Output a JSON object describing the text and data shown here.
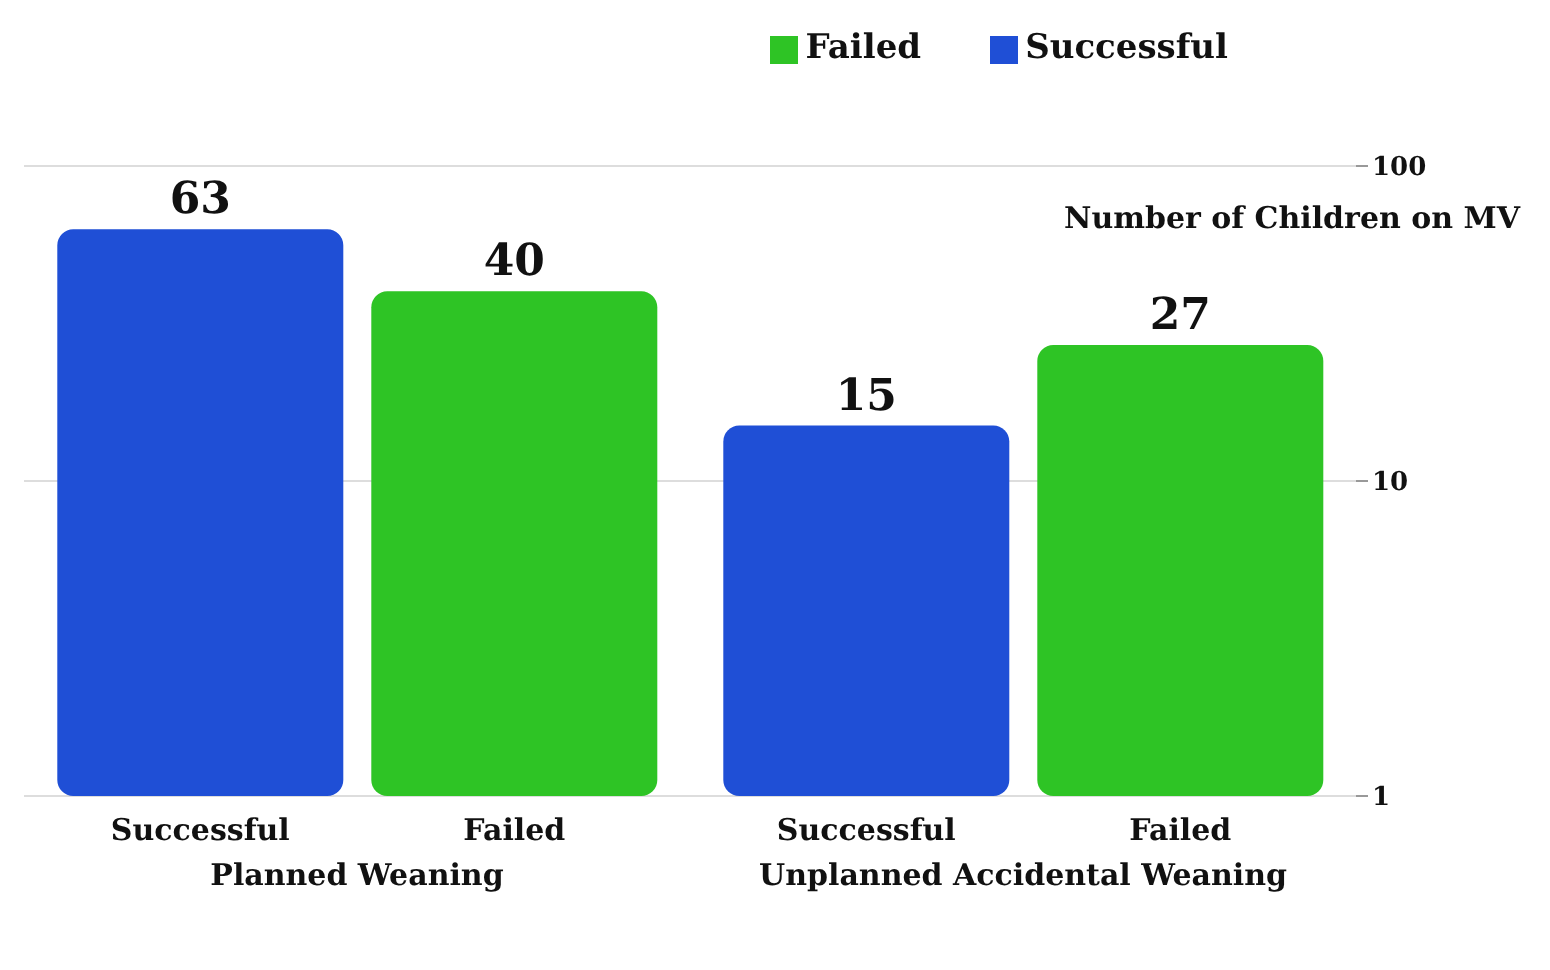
{
  "chart_data": {
    "type": "bar",
    "ylabel": "Number of Children on MV",
    "categories": [
      "Planned Weaning",
      "Unplanned Accidental Weaning"
    ],
    "series": [
      {
        "name": "Successful",
        "color": "#1f4fd6",
        "values": [
          63,
          15
        ]
      },
      {
        "name": "Failed",
        "color": "#2ec425",
        "values": [
          40,
          27
        ]
      }
    ],
    "log": true,
    "ylim": [
      1,
      100
    ],
    "yticks": [
      1,
      10,
      100
    ],
    "grid": "y",
    "legend": "top right",
    "data_labels": true
  }
}
